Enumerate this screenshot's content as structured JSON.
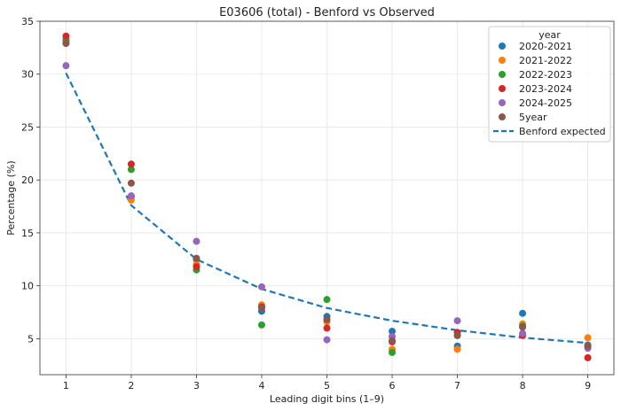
{
  "chart_data": {
    "type": "scatter",
    "title": "E03606 (total) - Benford vs Observed",
    "xlabel": "Leading digit bins (1–9)",
    "ylabel": "Percentage (%)",
    "x": [
      1,
      2,
      3,
      4,
      5,
      6,
      7,
      8,
      9
    ],
    "xlim": [
      0.6,
      9.4
    ],
    "ylim": [
      1.6,
      35.0
    ],
    "xticks": [
      1,
      2,
      3,
      4,
      5,
      6,
      7,
      8,
      9
    ],
    "yticks": [
      5,
      10,
      15,
      20,
      25,
      30,
      35
    ],
    "grid": true,
    "legend_title": "year",
    "legend_position": "top-right",
    "series": [
      {
        "name": "2020-2021",
        "color": "#1f77b4",
        "values": [
          33.1,
          18.4,
          12.5,
          7.6,
          7.1,
          5.7,
          4.3,
          7.4,
          4.4
        ]
      },
      {
        "name": "2021-2022",
        "color": "#ff7f0e",
        "values": [
          33.3,
          18.1,
          12.0,
          8.2,
          6.6,
          4.0,
          4.0,
          6.4,
          5.1
        ]
      },
      {
        "name": "2022-2023",
        "color": "#2ca02c",
        "values": [
          33.2,
          21.0,
          11.5,
          6.3,
          8.7,
          3.7,
          5.3,
          6.2,
          4.3
        ]
      },
      {
        "name": "2023-2024",
        "color": "#d62728",
        "values": [
          33.6,
          21.5,
          11.8,
          8.0,
          6.0,
          4.7,
          5.6,
          5.3,
          3.2
        ]
      },
      {
        "name": "2024-2025",
        "color": "#9467bd",
        "values": [
          30.8,
          18.5,
          14.2,
          9.9,
          4.9,
          5.2,
          6.7,
          5.5,
          4.1
        ]
      },
      {
        "name": "5year",
        "color": "#8c564b",
        "values": [
          32.9,
          19.7,
          12.6,
          7.9,
          6.8,
          4.8,
          5.3,
          6.1,
          4.3
        ]
      }
    ],
    "benford": {
      "name": "Benford expected",
      "color": "#1f77b4",
      "values": [
        30.1,
        17.6,
        12.5,
        9.7,
        7.9,
        6.7,
        5.8,
        5.1,
        4.6
      ]
    }
  }
}
